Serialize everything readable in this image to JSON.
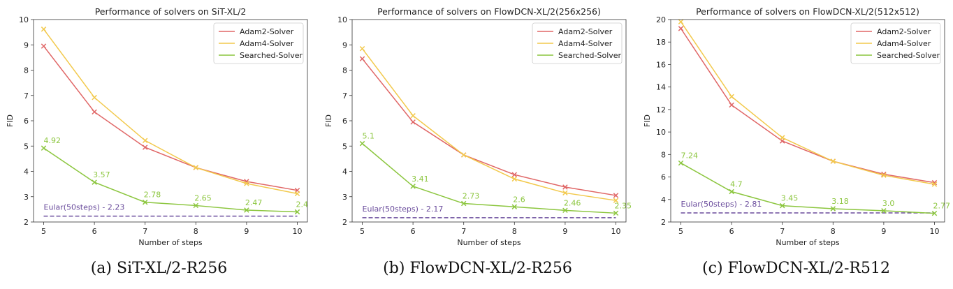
{
  "colors": {
    "adam2": "#e06666",
    "adam4": "#f2c94c",
    "searched": "#8cc63f",
    "euler": "#6a4c9c"
  },
  "chart_data": [
    {
      "type": "line",
      "title": "Performance of solvers on SiT-XL/2",
      "caption": "(a) SiT-XL/2-R256",
      "xlabel": "Number of steps",
      "ylabel": "FID",
      "x": [
        5,
        6,
        7,
        8,
        9,
        10
      ],
      "xlim": [
        4.8,
        10.2
      ],
      "ylim": [
        2,
        10
      ],
      "yticks": [
        2,
        3,
        4,
        5,
        6,
        7,
        8,
        9,
        10
      ],
      "legend": "top-right",
      "series": [
        {
          "name": "Adam2-Solver",
          "key": "adam2",
          "values": [
            8.95,
            6.35,
            4.95,
            4.15,
            3.6,
            3.25
          ]
        },
        {
          "name": "Adam4-Solver",
          "key": "adam4",
          "values": [
            9.62,
            6.92,
            5.22,
            4.15,
            3.52,
            3.12
          ]
        },
        {
          "name": "Searched-Solver",
          "key": "searched",
          "values": [
            4.92,
            3.57,
            2.78,
            2.65,
            2.47,
            2.4
          ],
          "labels": [
            "4.92",
            "3.57",
            "2.78",
            "2.65",
            "2.47",
            "2.4"
          ]
        }
      ],
      "baseline": {
        "label": "Eular(50steps) - 2.23",
        "value": 2.23
      }
    },
    {
      "type": "line",
      "title": "Performance of solvers on FlowDCN-XL/2(256x256)",
      "caption": "(b) FlowDCN-XL/2-R256",
      "xlabel": "Number of steps",
      "ylabel": "FID",
      "x": [
        5,
        6,
        7,
        8,
        9,
        10
      ],
      "xlim": [
        4.8,
        10.2
      ],
      "ylim": [
        2,
        10
      ],
      "yticks": [
        2,
        3,
        4,
        5,
        6,
        7,
        8,
        9,
        10
      ],
      "legend": "top-right",
      "series": [
        {
          "name": "Adam2-Solver",
          "key": "adam2",
          "values": [
            8.45,
            5.95,
            4.65,
            3.87,
            3.38,
            3.05
          ]
        },
        {
          "name": "Adam4-Solver",
          "key": "adam4",
          "values": [
            8.85,
            6.2,
            4.65,
            3.7,
            3.15,
            2.85
          ]
        },
        {
          "name": "Searched-Solver",
          "key": "searched",
          "values": [
            5.1,
            3.41,
            2.73,
            2.6,
            2.46,
            2.35
          ],
          "labels": [
            "5.1",
            "3.41",
            "2.73",
            "2.6",
            "2.46",
            "2.35"
          ]
        }
      ],
      "baseline": {
        "label": "Eular(50steps) - 2.17",
        "value": 2.17
      }
    },
    {
      "type": "line",
      "title": "Performance of solvers on FlowDCN-XL/2(512x512)",
      "caption": "(c) FlowDCN-XL/2-R512",
      "xlabel": "Number of steps",
      "ylabel": "FID",
      "x": [
        5,
        6,
        7,
        8,
        9,
        10
      ],
      "xlim": [
        4.8,
        10.2
      ],
      "ylim": [
        2,
        20
      ],
      "yticks": [
        2,
        4,
        6,
        8,
        10,
        12,
        14,
        16,
        18,
        20
      ],
      "legend": "top-right",
      "series": [
        {
          "name": "Adam2-Solver",
          "key": "adam2",
          "values": [
            19.2,
            12.4,
            9.2,
            7.4,
            6.25,
            5.5
          ]
        },
        {
          "name": "Adam4-Solver",
          "key": "adam4",
          "values": [
            19.8,
            13.15,
            9.5,
            7.4,
            6.15,
            5.35
          ]
        },
        {
          "name": "Searched-Solver",
          "key": "searched",
          "values": [
            7.24,
            4.7,
            3.45,
            3.18,
            3.0,
            2.77
          ],
          "labels": [
            "7.24",
            "4.7",
            "3.45",
            "3.18",
            "3.0",
            "2.77"
          ]
        }
      ],
      "baseline": {
        "label": "Eular(50steps) - 2.81",
        "value": 2.81
      }
    }
  ]
}
